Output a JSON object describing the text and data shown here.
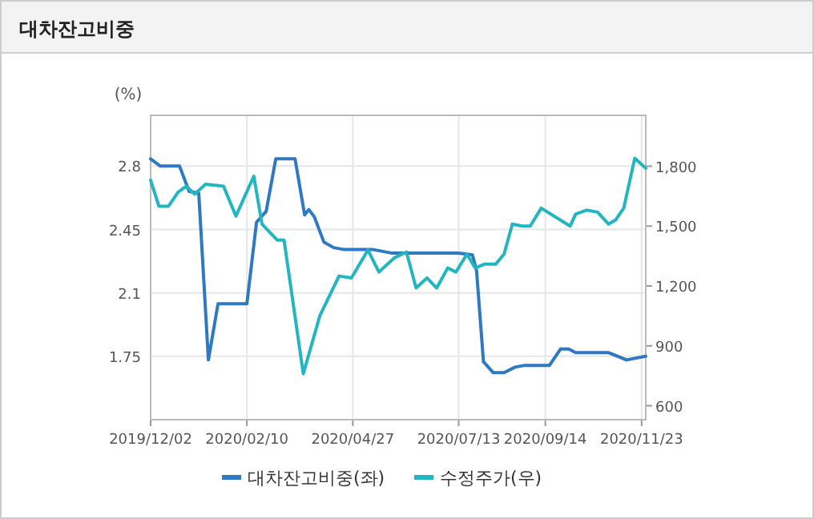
{
  "chart_data": {
    "type": "line",
    "title": "대차잔고비중",
    "ylabel": "(%)",
    "xlim": [
      "2019-12-02",
      "2020-11-26"
    ],
    "xticks": [
      {
        "value": "2019-12-02",
        "label": "2019/12/02"
      },
      {
        "value": "2020-02-10",
        "label": "2020/02/10"
      },
      {
        "value": "2020-04-27",
        "label": "2020/04/27"
      },
      {
        "value": "2020-07-13",
        "label": "2020/07/13"
      },
      {
        "value": "2020-09-14",
        "label": "2020/09/14"
      },
      {
        "value": "2020-11-23",
        "label": "2020/11/23"
      }
    ],
    "ylim": [
      1.4,
      3.08
    ],
    "yticks": [
      1.75,
      2.1,
      2.45,
      2.8
    ],
    "y2lim": [
      530,
      2055
    ],
    "y2ticks": [
      {
        "value": 600,
        "label": "600"
      },
      {
        "value": 900,
        "label": "900"
      },
      {
        "value": 1200,
        "label": "1,200"
      },
      {
        "value": 1500,
        "label": "1,500"
      },
      {
        "value": 1800,
        "label": "1,800"
      }
    ],
    "grid": true,
    "legend": "bottom",
    "marker": "none",
    "line_style": "solid",
    "series": [
      {
        "name": "대차잔고비중(좌)",
        "color": "#2f78c2",
        "x": [
          "2019-12-02",
          "2019-12-09",
          "2019-12-23",
          "2019-12-30",
          "2020-01-06",
          "2020-01-13",
          "2020-01-20",
          "2020-02-10",
          "2020-02-17",
          "2020-02-24",
          "2020-03-02",
          "2020-03-16",
          "2020-03-23",
          "2020-03-26",
          "2020-03-30",
          "2020-04-06",
          "2020-04-13",
          "2020-04-20",
          "2020-05-11",
          "2020-05-25",
          "2020-07-06",
          "2020-07-13",
          "2020-07-23",
          "2020-07-26",
          "2020-07-31",
          "2020-08-07",
          "2020-08-15",
          "2020-08-23",
          "2020-08-30",
          "2020-09-17",
          "2020-09-25",
          "2020-10-01",
          "2020-10-06",
          "2020-10-30",
          "2020-11-12",
          "2020-11-26"
        ],
        "values": [
          2.84,
          2.8,
          2.8,
          2.66,
          2.65,
          1.73,
          2.04,
          2.04,
          2.49,
          2.55,
          2.84,
          2.84,
          2.53,
          2.56,
          2.52,
          2.38,
          2.35,
          2.34,
          2.34,
          2.32,
          2.32,
          2.32,
          2.31,
          2.22,
          1.72,
          1.66,
          1.66,
          1.69,
          1.7,
          1.7,
          1.79,
          1.79,
          1.77,
          1.77,
          1.73,
          1.75
        ]
      },
      {
        "name": "수정주가(우)",
        "color": "#23b5c0",
        "axis": "y2",
        "x": [
          "2019-12-02",
          "2019-12-08",
          "2019-12-15",
          "2019-12-22",
          "2019-12-28",
          "2020-01-03",
          "2020-01-11",
          "2020-01-24",
          "2020-02-02",
          "2020-02-15",
          "2020-02-21",
          "2020-03-03",
          "2020-03-08",
          "2020-03-22",
          "2020-04-03",
          "2020-04-17",
          "2020-04-26",
          "2020-05-08",
          "2020-05-16",
          "2020-05-27",
          "2020-06-05",
          "2020-06-12",
          "2020-06-20",
          "2020-06-27",
          "2020-07-05",
          "2020-07-11",
          "2020-07-19",
          "2020-07-25",
          "2020-08-01",
          "2020-08-09",
          "2020-08-15",
          "2020-08-21",
          "2020-08-28",
          "2020-09-03",
          "2020-09-11",
          "2020-10-02",
          "2020-10-06",
          "2020-10-14",
          "2020-10-22",
          "2020-10-30",
          "2020-11-04",
          "2020-11-10",
          "2020-11-18",
          "2020-11-26"
        ],
        "values": [
          1730,
          1600,
          1600,
          1670,
          1700,
          1660,
          1710,
          1700,
          1550,
          1750,
          1510,
          1430,
          1430,
          760,
          1050,
          1250,
          1240,
          1380,
          1270,
          1340,
          1370,
          1190,
          1240,
          1190,
          1290,
          1270,
          1360,
          1290,
          1310,
          1310,
          1360,
          1510,
          1500,
          1500,
          1590,
          1500,
          1560,
          1580,
          1570,
          1510,
          1530,
          1590,
          1840,
          1790
        ]
      }
    ]
  }
}
